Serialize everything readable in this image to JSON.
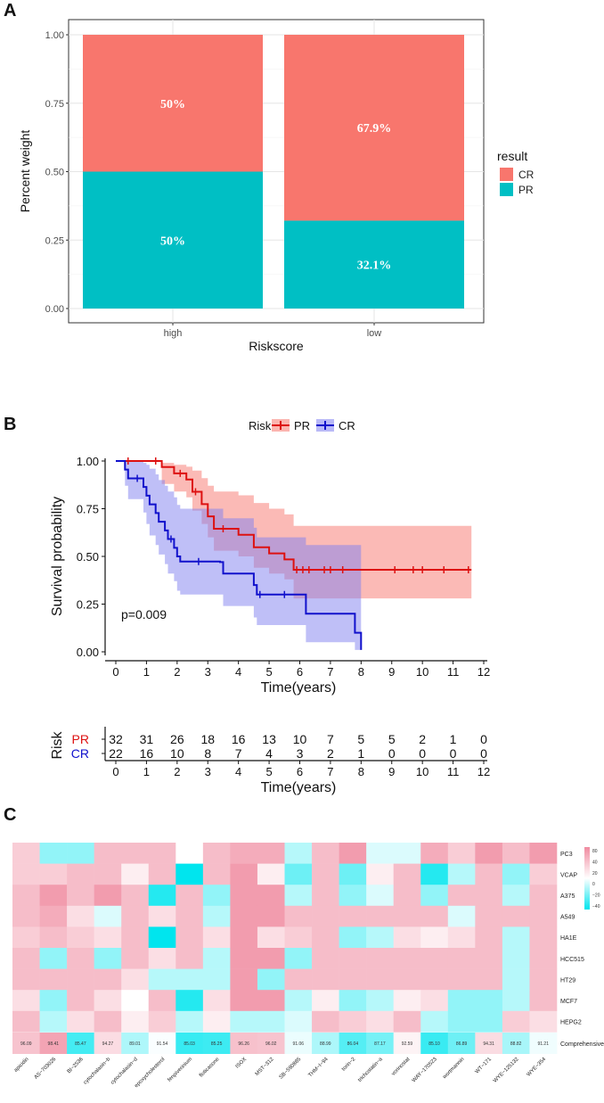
{
  "chart_data": [
    {
      "panel": "A",
      "type": "bar",
      "stacked": true,
      "categories": [
        "high",
        "low"
      ],
      "series": [
        {
          "name": "CR",
          "values": [
            0.5,
            0.679
          ],
          "labels": [
            "50%",
            "67.9%"
          ],
          "color": "#F8766D"
        },
        {
          "name": "PR",
          "values": [
            0.5,
            0.321
          ],
          "labels": [
            "50%",
            "32.1%"
          ],
          "color": "#00BFC4"
        }
      ],
      "xlabel": "Riskscore",
      "ylabel": "Percent weight",
      "ylim": [
        0,
        1
      ],
      "yticks": [
        "0.00",
        "0.25",
        "0.50",
        "0.75",
        "1.00"
      ],
      "legend_title": "result",
      "legend_position": "right",
      "grid": true
    },
    {
      "panel": "B",
      "type": "line",
      "subtype": "kaplan-meier",
      "title": "",
      "legend_title": "Risk",
      "legend_position": "top",
      "xlabel": "Time(years)",
      "ylabel": "Survival probability",
      "xlim": [
        0,
        12
      ],
      "ylim": [
        0,
        1
      ],
      "xticks": [
        "0",
        "1",
        "2",
        "3",
        "4",
        "5",
        "6",
        "7",
        "8",
        "9",
        "10",
        "11",
        "12"
      ],
      "yticks": [
        "0.00",
        "0.25",
        "0.50",
        "0.75",
        "1.00"
      ],
      "annotation": "p=0.009",
      "series": [
        {
          "name": "PR",
          "color": "#DD1111",
          "band_color": "#F8766D",
          "steps": [
            [
              0,
              1
            ],
            [
              1.5,
              0.968
            ],
            [
              1.9,
              0.935
            ],
            [
              2.3,
              0.903
            ],
            [
              2.5,
              0.839
            ],
            [
              2.8,
              0.774
            ],
            [
              3.0,
              0.71
            ],
            [
              3.2,
              0.645
            ],
            [
              4.0,
              0.613
            ],
            [
              4.5,
              0.548
            ],
            [
              5.0,
              0.516
            ],
            [
              5.5,
              0.484
            ],
            [
              5.8,
              0.43
            ],
            [
              11.6,
              0.43
            ]
          ],
          "band": [
            [
              0,
              1,
              1
            ],
            [
              1.5,
              0.99,
              0.88
            ],
            [
              1.9,
              0.98,
              0.84
            ],
            [
              2.3,
              0.97,
              0.81
            ],
            [
              2.5,
              0.95,
              0.74
            ],
            [
              2.8,
              0.91,
              0.67
            ],
            [
              3.0,
              0.87,
              0.6
            ],
            [
              3.2,
              0.84,
              0.53
            ],
            [
              4.0,
              0.82,
              0.5
            ],
            [
              4.5,
              0.78,
              0.44
            ],
            [
              5.0,
              0.75,
              0.41
            ],
            [
              5.5,
              0.72,
              0.38
            ],
            [
              5.8,
              0.66,
              0.28
            ],
            [
              11.6,
              0.66,
              0.28
            ]
          ],
          "censors": [
            [
              0.4,
              1
            ],
            [
              1.3,
              1
            ],
            [
              2.1,
              0.935
            ],
            [
              2.6,
              0.839
            ],
            [
              3.5,
              0.645
            ],
            [
              5.9,
              0.43
            ],
            [
              6.1,
              0.43
            ],
            [
              6.3,
              0.43
            ],
            [
              6.8,
              0.43
            ],
            [
              7.0,
              0.43
            ],
            [
              7.4,
              0.43
            ],
            [
              9.1,
              0.43
            ],
            [
              9.7,
              0.43
            ],
            [
              10.0,
              0.43
            ],
            [
              10.7,
              0.43
            ],
            [
              11.5,
              0.43
            ]
          ]
        },
        {
          "name": "CR",
          "color": "#1111CC",
          "band_color": "#8080F0",
          "steps": [
            [
              0,
              1
            ],
            [
              0.3,
              0.955
            ],
            [
              0.4,
              0.909
            ],
            [
              0.9,
              0.864
            ],
            [
              1.0,
              0.818
            ],
            [
              1.1,
              0.773
            ],
            [
              1.3,
              0.727
            ],
            [
              1.4,
              0.682
            ],
            [
              1.6,
              0.636
            ],
            [
              1.7,
              0.591
            ],
            [
              1.9,
              0.545
            ],
            [
              2.0,
              0.5
            ],
            [
              2.1,
              0.473
            ],
            [
              3.4,
              0.47
            ],
            [
              3.5,
              0.41
            ],
            [
              4.4,
              0.41
            ],
            [
              4.5,
              0.35
            ],
            [
              4.6,
              0.3
            ],
            [
              6.1,
              0.3
            ],
            [
              6.2,
              0.2
            ],
            [
              7.7,
              0.2
            ],
            [
              7.8,
              0.1
            ],
            [
              8.0,
              0.1
            ],
            [
              8.0,
              0.01
            ]
          ],
          "band": [
            [
              0,
              1,
              1
            ],
            [
              0.3,
              1,
              0.87
            ],
            [
              0.4,
              1,
              0.8
            ],
            [
              0.9,
              0.99,
              0.73
            ],
            [
              1.0,
              0.98,
              0.67
            ],
            [
              1.1,
              0.96,
              0.61
            ],
            [
              1.3,
              0.93,
              0.56
            ],
            [
              1.4,
              0.9,
              0.51
            ],
            [
              1.6,
              0.87,
              0.46
            ],
            [
              1.7,
              0.84,
              0.41
            ],
            [
              1.9,
              0.81,
              0.37
            ],
            [
              2.0,
              0.77,
              0.32
            ],
            [
              2.1,
              0.75,
              0.3
            ],
            [
              3.4,
              0.75,
              0.3
            ],
            [
              3.5,
              0.7,
              0.24
            ],
            [
              4.4,
              0.7,
              0.24
            ],
            [
              4.5,
              0.65,
              0.18
            ],
            [
              4.6,
              0.6,
              0.14
            ],
            [
              6.1,
              0.6,
              0.14
            ],
            [
              6.2,
              0.56,
              0.05
            ],
            [
              7.7,
              0.56,
              0.05
            ],
            [
              7.8,
              0.56,
              0.01
            ],
            [
              8.0,
              0.56,
              0.01
            ]
          ],
          "censors": [
            [
              0.7,
              0.909
            ],
            [
              1.8,
              0.591
            ],
            [
              2.7,
              0.473
            ],
            [
              4.7,
              0.3
            ],
            [
              5.5,
              0.3
            ]
          ]
        }
      ]
    },
    {
      "panel": "B-risktable",
      "type": "table",
      "ylabel": "Risk",
      "xlabel": "Time(years)",
      "xticks": [
        "0",
        "1",
        "2",
        "3",
        "4",
        "5",
        "6",
        "7",
        "8",
        "9",
        "10",
        "11",
        "12"
      ],
      "rows": [
        {
          "name": "PR",
          "color": "#DD1111",
          "values": [
            "32",
            "31",
            "26",
            "18",
            "16",
            "13",
            "10",
            "7",
            "5",
            "5",
            "2",
            "1",
            "0"
          ]
        },
        {
          "name": "CR",
          "color": "#1111CC",
          "values": [
            "22",
            "16",
            "10",
            "8",
            "7",
            "4",
            "3",
            "2",
            "1",
            "0",
            "0",
            "0",
            "0"
          ]
        }
      ]
    },
    {
      "panel": "C",
      "type": "heatmap",
      "rows": [
        "PC3",
        "VCAP",
        "A375",
        "A549",
        "HA1E",
        "HCC515",
        "HT29",
        "MCF7",
        "HEPG2"
      ],
      "columns": [
        "apicidin",
        "AS−703026",
        "BI−2536",
        "cytochalasin−b",
        "cytochalasin−d",
        "epoxycholesterol",
        "fenpiverinium",
        "fluticasone",
        "ISOX",
        "MST−312",
        "SB−590885",
        "THM−I−94",
        "torin−2",
        "trichostatin−a",
        "vorinostat",
        "WAY−170523",
        "wortmannin",
        "WT−171",
        "WYE−125132",
        "WYE−354"
      ],
      "values": [
        [
          30,
          -30,
          -30,
          40,
          40,
          40,
          0,
          40,
          50,
          50,
          -20,
          40,
          60,
          -10,
          -10,
          50,
          30,
          60,
          40,
          60
        ],
        [
          30,
          30,
          40,
          40,
          10,
          40,
          -70,
          40,
          60,
          10,
          -40,
          40,
          -40,
          10,
          40,
          -60,
          -20,
          40,
          -30,
          30
        ],
        [
          40,
          60,
          40,
          60,
          40,
          -60,
          40,
          -30,
          60,
          60,
          -20,
          40,
          -30,
          -10,
          40,
          -30,
          40,
          40,
          -20,
          40
        ],
        [
          40,
          50,
          20,
          -10,
          40,
          20,
          40,
          -20,
          60,
          60,
          40,
          40,
          40,
          40,
          40,
          40,
          -10,
          40,
          40,
          40
        ],
        [
          30,
          40,
          30,
          20,
          40,
          -70,
          40,
          20,
          60,
          20,
          30,
          40,
          -30,
          -20,
          20,
          10,
          20,
          40,
          -20,
          40
        ],
        [
          40,
          -30,
          40,
          -30,
          40,
          20,
          40,
          -20,
          60,
          60,
          -30,
          40,
          40,
          40,
          40,
          40,
          40,
          40,
          -20,
          40
        ],
        [
          40,
          40,
          40,
          40,
          20,
          -20,
          -20,
          -20,
          60,
          -30,
          40,
          40,
          40,
          40,
          40,
          40,
          40,
          40,
          -20,
          40
        ],
        [
          20,
          -30,
          40,
          20,
          0,
          40,
          -60,
          20,
          60,
          60,
          -20,
          10,
          -30,
          -20,
          10,
          20,
          -30,
          -30,
          -20,
          40
        ],
        [
          40,
          -20,
          20,
          40,
          10,
          30,
          -20,
          10,
          -20,
          -20,
          -10,
          40,
          30,
          20,
          40,
          -20,
          -30,
          -30,
          30,
          20
        ]
      ],
      "comprehensive": {
        "label": "Comprehensive",
        "values": [
          "96.09",
          "98.41",
          "85.47",
          "94.27",
          "89.01",
          "91.54",
          "85.03",
          "85.25",
          "96.26",
          "96.02",
          "91.06",
          "88.99",
          "86.04",
          "87.17",
          "92.59",
          "85.10",
          "86.89",
          "94.31",
          "88.82",
          "91.21"
        ]
      },
      "colorbar": {
        "ticks": [
          "80",
          "40",
          "20",
          "0",
          "−20",
          "−40"
        ],
        "high_color": "#F08BA0",
        "low_color": "#00E5EE"
      }
    }
  ],
  "labels": {
    "panel_a": "A",
    "panel_b": "B",
    "panel_c": "C",
    "risk_title": "Risk"
  }
}
